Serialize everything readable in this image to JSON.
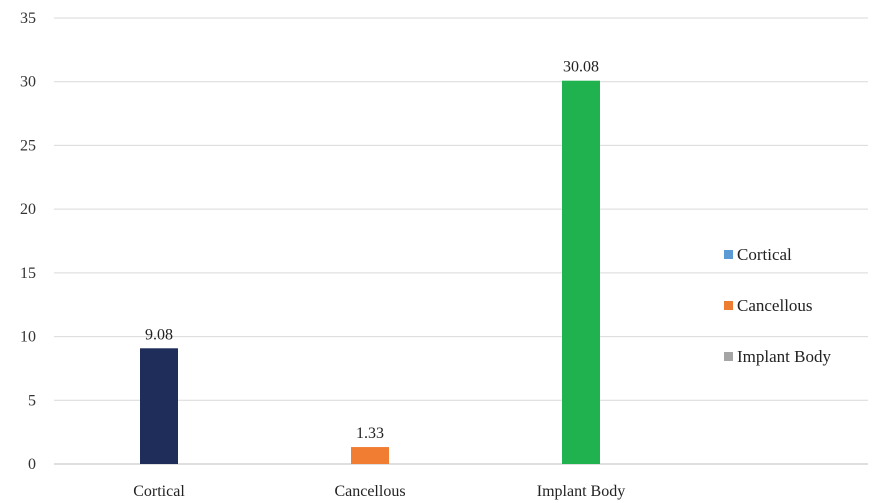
{
  "chart_data": {
    "type": "bar",
    "title": "",
    "xlabel": "",
    "ylabel": "",
    "categories": [
      "Cortical",
      "Cancellous",
      "Implant Body"
    ],
    "values": [
      9.08,
      1.33,
      30.08
    ],
    "data_labels": [
      "9.08",
      "1.33",
      "30.08"
    ],
    "bar_colors": [
      "#1f2d5a",
      "#f07d32",
      "#1fb24f"
    ],
    "ylim": [
      0,
      35
    ],
    "yticks": [
      0,
      5,
      10,
      15,
      20,
      25,
      30,
      35
    ],
    "grid": true,
    "legend": {
      "position": "right",
      "entries": [
        {
          "label": "Cortical",
          "color": "#5b9bd5"
        },
        {
          "label": "Cancellous",
          "color": "#ed7d31"
        },
        {
          "label": "Implant Body",
          "color": "#a5a5a5"
        }
      ]
    }
  }
}
